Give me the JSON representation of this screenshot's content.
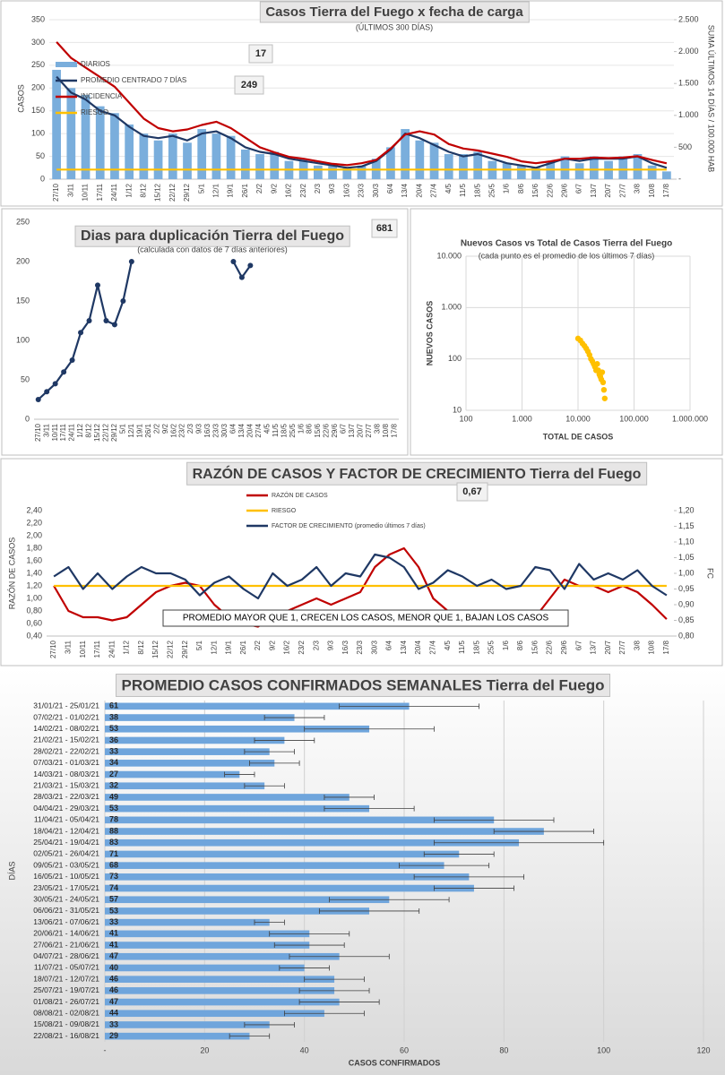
{
  "chart_data": [
    {
      "type": "combo",
      "title": "Casos Tierra del Fuego x fecha de carga",
      "subtitle": "(ÚLTIMOS 300 DÍAS)",
      "ylabel": "CASOS",
      "y2label": "SUMA ÚLTIMOS 14 DÍAS / 100.000 HAB",
      "categories": [
        "27/10",
        "3/11",
        "10/11",
        "17/11",
        "24/11",
        "1/12",
        "8/12",
        "15/12",
        "22/12",
        "29/12",
        "5/1",
        "12/1",
        "19/1",
        "26/1",
        "2/2",
        "9/2",
        "16/2",
        "23/2",
        "2/3",
        "9/3",
        "16/3",
        "23/3",
        "30/3",
        "6/4",
        "13/4",
        "20/4",
        "27/4",
        "4/5",
        "11/5",
        "18/5",
        "25/5",
        "1/6",
        "8/6",
        "15/6",
        "22/6",
        "29/6",
        "6/7",
        "13/7",
        "20/7",
        "27/7",
        "3/8",
        "10/8",
        "17/8"
      ],
      "series": [
        {
          "name": "DIARIOS",
          "style": "bar",
          "color": "#7aaedc",
          "values": [
            240,
            200,
            185,
            160,
            145,
            120,
            100,
            85,
            100,
            80,
            110,
            100,
            95,
            65,
            55,
            60,
            40,
            45,
            30,
            35,
            25,
            30,
            45,
            70,
            110,
            85,
            80,
            55,
            55,
            60,
            40,
            35,
            30,
            25,
            40,
            50,
            35,
            50,
            40,
            50,
            55,
            30,
            17
          ]
        },
        {
          "name": "PROMEDIO CENTRADO 7 DÍAS",
          "style": "line",
          "color": "#1f3864",
          "values": [
            225,
            190,
            175,
            150,
            140,
            115,
            95,
            90,
            95,
            85,
            100,
            105,
            90,
            70,
            60,
            55,
            45,
            40,
            35,
            30,
            25,
            28,
            40,
            65,
            100,
            90,
            75,
            60,
            50,
            55,
            45,
            35,
            30,
            25,
            35,
            45,
            40,
            45,
            45,
            45,
            50,
            35,
            25
          ]
        },
        {
          "name": "INCIDENCIA",
          "style": "line",
          "axis": "y2",
          "color": "#c00000",
          "values": [
            2150,
            1900,
            1750,
            1600,
            1450,
            1200,
            950,
            800,
            750,
            780,
            850,
            900,
            800,
            650,
            500,
            420,
            350,
            320,
            280,
            240,
            220,
            250,
            300,
            480,
            700,
            750,
            700,
            550,
            480,
            450,
            400,
            350,
            280,
            250,
            280,
            320,
            320,
            340,
            330,
            340,
            360,
            300,
            249
          ]
        },
        {
          "name": "RIESGO",
          "style": "line",
          "axis": "y2",
          "color": "#ffc000",
          "values": [
            150,
            150,
            150,
            150,
            150,
            150,
            150,
            150,
            150,
            150,
            150,
            150,
            150,
            150,
            150,
            150,
            150,
            150,
            150,
            150,
            150,
            150,
            150,
            150,
            150,
            150,
            150,
            150,
            150,
            150,
            150,
            150,
            150,
            150,
            150,
            150,
            150,
            150,
            150,
            150,
            150,
            150,
            150
          ]
        }
      ],
      "ylim": [
        0,
        350
      ],
      "yticks": [
        0,
        50,
        100,
        150,
        200,
        250,
        300,
        350
      ],
      "y2lim": [
        0,
        2500
      ],
      "y2ticks": [
        {
          "value": 0,
          "label": "-"
        },
        500,
        {
          "value": 1000,
          "label": "1.000"
        },
        {
          "value": 1500,
          "label": "1.500"
        },
        {
          "value": 2000,
          "label": "2.000"
        },
        {
          "value": 2500,
          "label": "2.500"
        }
      ],
      "grid": true,
      "legend": "top-left",
      "annotations": [
        "17",
        "249"
      ]
    },
    {
      "type": "line",
      "title": "Dias para duplicación Tierra del Fuego",
      "subtitle": "(calculada con datos de 7 días anteriores)",
      "categories": [
        "27/10",
        "3/11",
        "10/11",
        "17/11",
        "24/11",
        "1/12",
        "8/12",
        "15/12",
        "22/12",
        "29/12",
        "5/1",
        "12/1",
        "19/1",
        "26/1",
        "2/2",
        "9/2",
        "16/2",
        "23/2",
        "2/3",
        "9/3",
        "16/3",
        "23/3",
        "30/3",
        "6/4",
        "13/4",
        "20/4",
        "27/4",
        "4/5",
        "11/5",
        "18/5",
        "25/5",
        "1/6",
        "8/6",
        "15/6",
        "22/6",
        "29/6",
        "6/7",
        "13/7",
        "20/7",
        "27/7",
        "3/8",
        "10/8",
        "17/8"
      ],
      "values": [
        25,
        35,
        45,
        60,
        75,
        110,
        125,
        170,
        125,
        120,
        150,
        200,
        null,
        null,
        null,
        null,
        null,
        null,
        null,
        null,
        null,
        null,
        null,
        200,
        180,
        195,
        null,
        null,
        null,
        null,
        null,
        null,
        null,
        null,
        null,
        null,
        null,
        null,
        null,
        null,
        null,
        null,
        null
      ],
      "color": "#1f3864",
      "markers": true,
      "ylim": [
        0,
        250
      ],
      "yticks": [
        0,
        50,
        100,
        150,
        200,
        250
      ],
      "grid": false,
      "annotations": [
        "681"
      ]
    },
    {
      "type": "scatter",
      "title": "Nuevos Casos vs Total de Casos Tierra del Fuego",
      "subtitle": "(cada punto es el promedio de los últimos 7 días)",
      "xlabel": "TOTAL DE CASOS",
      "ylabel": "NUEVOS CASOS",
      "log_x": true,
      "log_y": true,
      "x": [
        10000,
        11000,
        12000,
        13000,
        14000,
        15000,
        16000,
        17000,
        18000,
        19000,
        20000,
        21000,
        22000,
        23000,
        24000,
        25000,
        26000,
        27000,
        28000,
        29000,
        30000
      ],
      "y": [
        250,
        230,
        200,
        180,
        160,
        140,
        120,
        100,
        90,
        80,
        70,
        60,
        80,
        60,
        50,
        45,
        40,
        55,
        35,
        25,
        17
      ],
      "color": "#ffc000",
      "xlim": [
        100,
        1000000
      ],
      "xticks": [
        100,
        {
          "value": 1000,
          "label": "1.000"
        },
        {
          "value": 10000,
          "label": "10.000"
        },
        {
          "value": 100000,
          "label": "100.000"
        },
        {
          "value": 1000000,
          "label": "1.000.000"
        }
      ],
      "ylim": [
        10,
        10000
      ],
      "yticks": [
        10,
        100,
        {
          "value": 1000,
          "label": "1.000"
        },
        {
          "value": 10000,
          "label": "10.000"
        }
      ],
      "grid": true
    },
    {
      "type": "line",
      "title": "RAZÓN DE CASOS Y FACTOR DE CRECIMIENTO Tierra del Fuego",
      "ylabel": "RAZÓN DE CASOS",
      "y2label": "FC",
      "categories": [
        "27/10",
        "3/11",
        "10/11",
        "17/11",
        "24/11",
        "1/12",
        "8/12",
        "15/12",
        "22/12",
        "29/12",
        "5/1",
        "12/1",
        "19/1",
        "26/1",
        "2/2",
        "9/2",
        "16/2",
        "23/2",
        "2/3",
        "9/3",
        "16/3",
        "23/3",
        "30/3",
        "6/4",
        "13/4",
        "20/4",
        "27/4",
        "4/5",
        "11/5",
        "18/5",
        "25/5",
        "1/6",
        "8/6",
        "15/6",
        "22/6",
        "29/6",
        "6/7",
        "13/7",
        "20/7",
        "27/7",
        "3/8",
        "10/8",
        "17/8"
      ],
      "series": [
        {
          "name": "RAZÓN DE CASOS",
          "color": "#c00000",
          "values": [
            1.2,
            0.8,
            0.7,
            0.7,
            0.65,
            0.7,
            0.9,
            1.1,
            1.2,
            1.25,
            1.2,
            0.9,
            0.7,
            0.6,
            0.55,
            0.7,
            0.8,
            0.9,
            1.0,
            0.9,
            1.0,
            1.1,
            1.5,
            1.7,
            1.8,
            1.5,
            1.0,
            0.8,
            0.7,
            0.7,
            0.7,
            0.7,
            0.65,
            0.7,
            1.0,
            1.3,
            1.2,
            1.2,
            1.1,
            1.2,
            1.1,
            0.9,
            0.67
          ]
        },
        {
          "name": "RIESGO",
          "color": "#ffc000",
          "values": [
            1.2,
            1.2,
            1.2,
            1.2,
            1.2,
            1.2,
            1.2,
            1.2,
            1.2,
            1.2,
            1.2,
            1.2,
            1.2,
            1.2,
            1.2,
            1.2,
            1.2,
            1.2,
            1.2,
            1.2,
            1.2,
            1.2,
            1.2,
            1.2,
            1.2,
            1.2,
            1.2,
            1.2,
            1.2,
            1.2,
            1.2,
            1.2,
            1.2,
            1.2,
            1.2,
            1.2,
            1.2,
            1.2,
            1.2,
            1.2,
            1.2,
            1.2,
            1.2
          ]
        },
        {
          "name": "FACTOR DE CRECIMIENTO (promedio últimos 7 días)",
          "axis": "y2",
          "color": "#1f3864",
          "values": [
            0.99,
            1.02,
            0.95,
            1.0,
            0.95,
            0.99,
            1.02,
            1.0,
            1.0,
            0.98,
            0.93,
            0.97,
            0.99,
            0.95,
            0.92,
            1.0,
            0.96,
            0.98,
            1.02,
            0.96,
            1.0,
            0.99,
            1.06,
            1.05,
            1.02,
            0.95,
            0.97,
            1.01,
            0.99,
            0.96,
            0.98,
            0.95,
            0.96,
            1.02,
            1.01,
            0.95,
            1.03,
            0.98,
            1.0,
            0.98,
            1.01,
            0.96,
            0.93
          ]
        }
      ],
      "ylim": [
        0.4,
        2.4
      ],
      "yticks": [
        {
          "value": 0.4,
          "label": "0,40"
        },
        {
          "value": 0.6,
          "label": "0,60"
        },
        {
          "value": 0.8,
          "label": "0,80"
        },
        {
          "value": 1.0,
          "label": "1,00"
        },
        {
          "value": 1.2,
          "label": "1,20"
        },
        {
          "value": 1.4,
          "label": "1,40"
        },
        {
          "value": 1.6,
          "label": "1,60"
        },
        {
          "value": 1.8,
          "label": "1,80"
        },
        {
          "value": 2.0,
          "label": "2,00"
        },
        {
          "value": 2.2,
          "label": "2,20"
        },
        {
          "value": 2.4,
          "label": "2,40"
        }
      ],
      "y2lim": [
        0.8,
        1.2
      ],
      "y2ticks": [
        {
          "value": 0.8,
          "label": "0,80"
        },
        {
          "value": 0.85,
          "label": "0,85"
        },
        {
          "value": 0.9,
          "label": "0,90"
        },
        {
          "value": 0.95,
          "label": "0,95"
        },
        {
          "value": 1.0,
          "label": "1,00"
        },
        {
          "value": 1.05,
          "label": "1,05"
        },
        {
          "value": 1.1,
          "label": "1,10"
        },
        {
          "value": 1.15,
          "label": "1,15"
        },
        {
          "value": 1.2,
          "label": "1,20"
        }
      ],
      "grid": false,
      "legend": "top",
      "annotations": [
        "0,67"
      ],
      "note": "PROMEDIO MAYOR QUE 1, CRECEN LOS CASOS, MENOR QUE 1, BAJAN LOS CASOS"
    },
    {
      "type": "bar",
      "orientation": "horizontal",
      "title": "PROMEDIO CASOS CONFIRMADOS SEMANALES Tierra del Fuego",
      "xlabel": "CASOS CONFIRMADOS",
      "ylabel": "DÍAS",
      "color": "#6fa5dc",
      "categories": [
        "31/01/21 - 25/01/21",
        "07/02/21 - 01/02/21",
        "14/02/21 - 08/02/21",
        "21/02/21 - 15/02/21",
        "28/02/21 - 22/02/21",
        "07/03/21 - 01/03/21",
        "14/03/21 - 08/03/21",
        "21/03/21 - 15/03/21",
        "28/03/21 - 22/03/21",
        "04/04/21 - 29/03/21",
        "11/04/21 - 05/04/21",
        "18/04/21 - 12/04/21",
        "25/04/21 - 19/04/21",
        "02/05/21 - 26/04/21",
        "09/05/21 - 03/05/21",
        "16/05/21 - 10/05/21",
        "23/05/21 - 17/05/21",
        "30/05/21 - 24/05/21",
        "06/06/21 - 31/05/21",
        "13/06/21 - 07/06/21",
        "20/06/21 - 14/06/21",
        "27/06/21 - 21/06/21",
        "04/07/21 - 28/06/21",
        "11/07/21 - 05/07/21",
        "18/07/21 - 12/07/21",
        "25/07/21 - 19/07/21",
        "01/08/21 - 26/07/21",
        "08/08/21 - 02/08/21",
        "15/08/21 - 09/08/21",
        "22/08/21 - 16/08/21"
      ],
      "values": [
        61,
        38,
        53,
        36,
        33,
        34,
        27,
        32,
        49,
        53,
        78,
        88,
        83,
        71,
        68,
        73,
        74,
        57,
        53,
        33,
        41,
        41,
        47,
        40,
        46,
        46,
        47,
        44,
        33,
        29
      ],
      "errors": [
        14,
        6,
        13,
        6,
        5,
        5,
        3,
        4,
        5,
        9,
        12,
        10,
        17,
        7,
        9,
        11,
        8,
        12,
        10,
        3,
        8,
        7,
        10,
        5,
        6,
        7,
        8,
        8,
        5,
        4
      ],
      "xlim": [
        0,
        120
      ],
      "xticks": [
        {
          "value": 0,
          "label": "-"
        },
        20,
        40,
        60,
        80,
        100,
        120
      ],
      "grid": true
    }
  ]
}
